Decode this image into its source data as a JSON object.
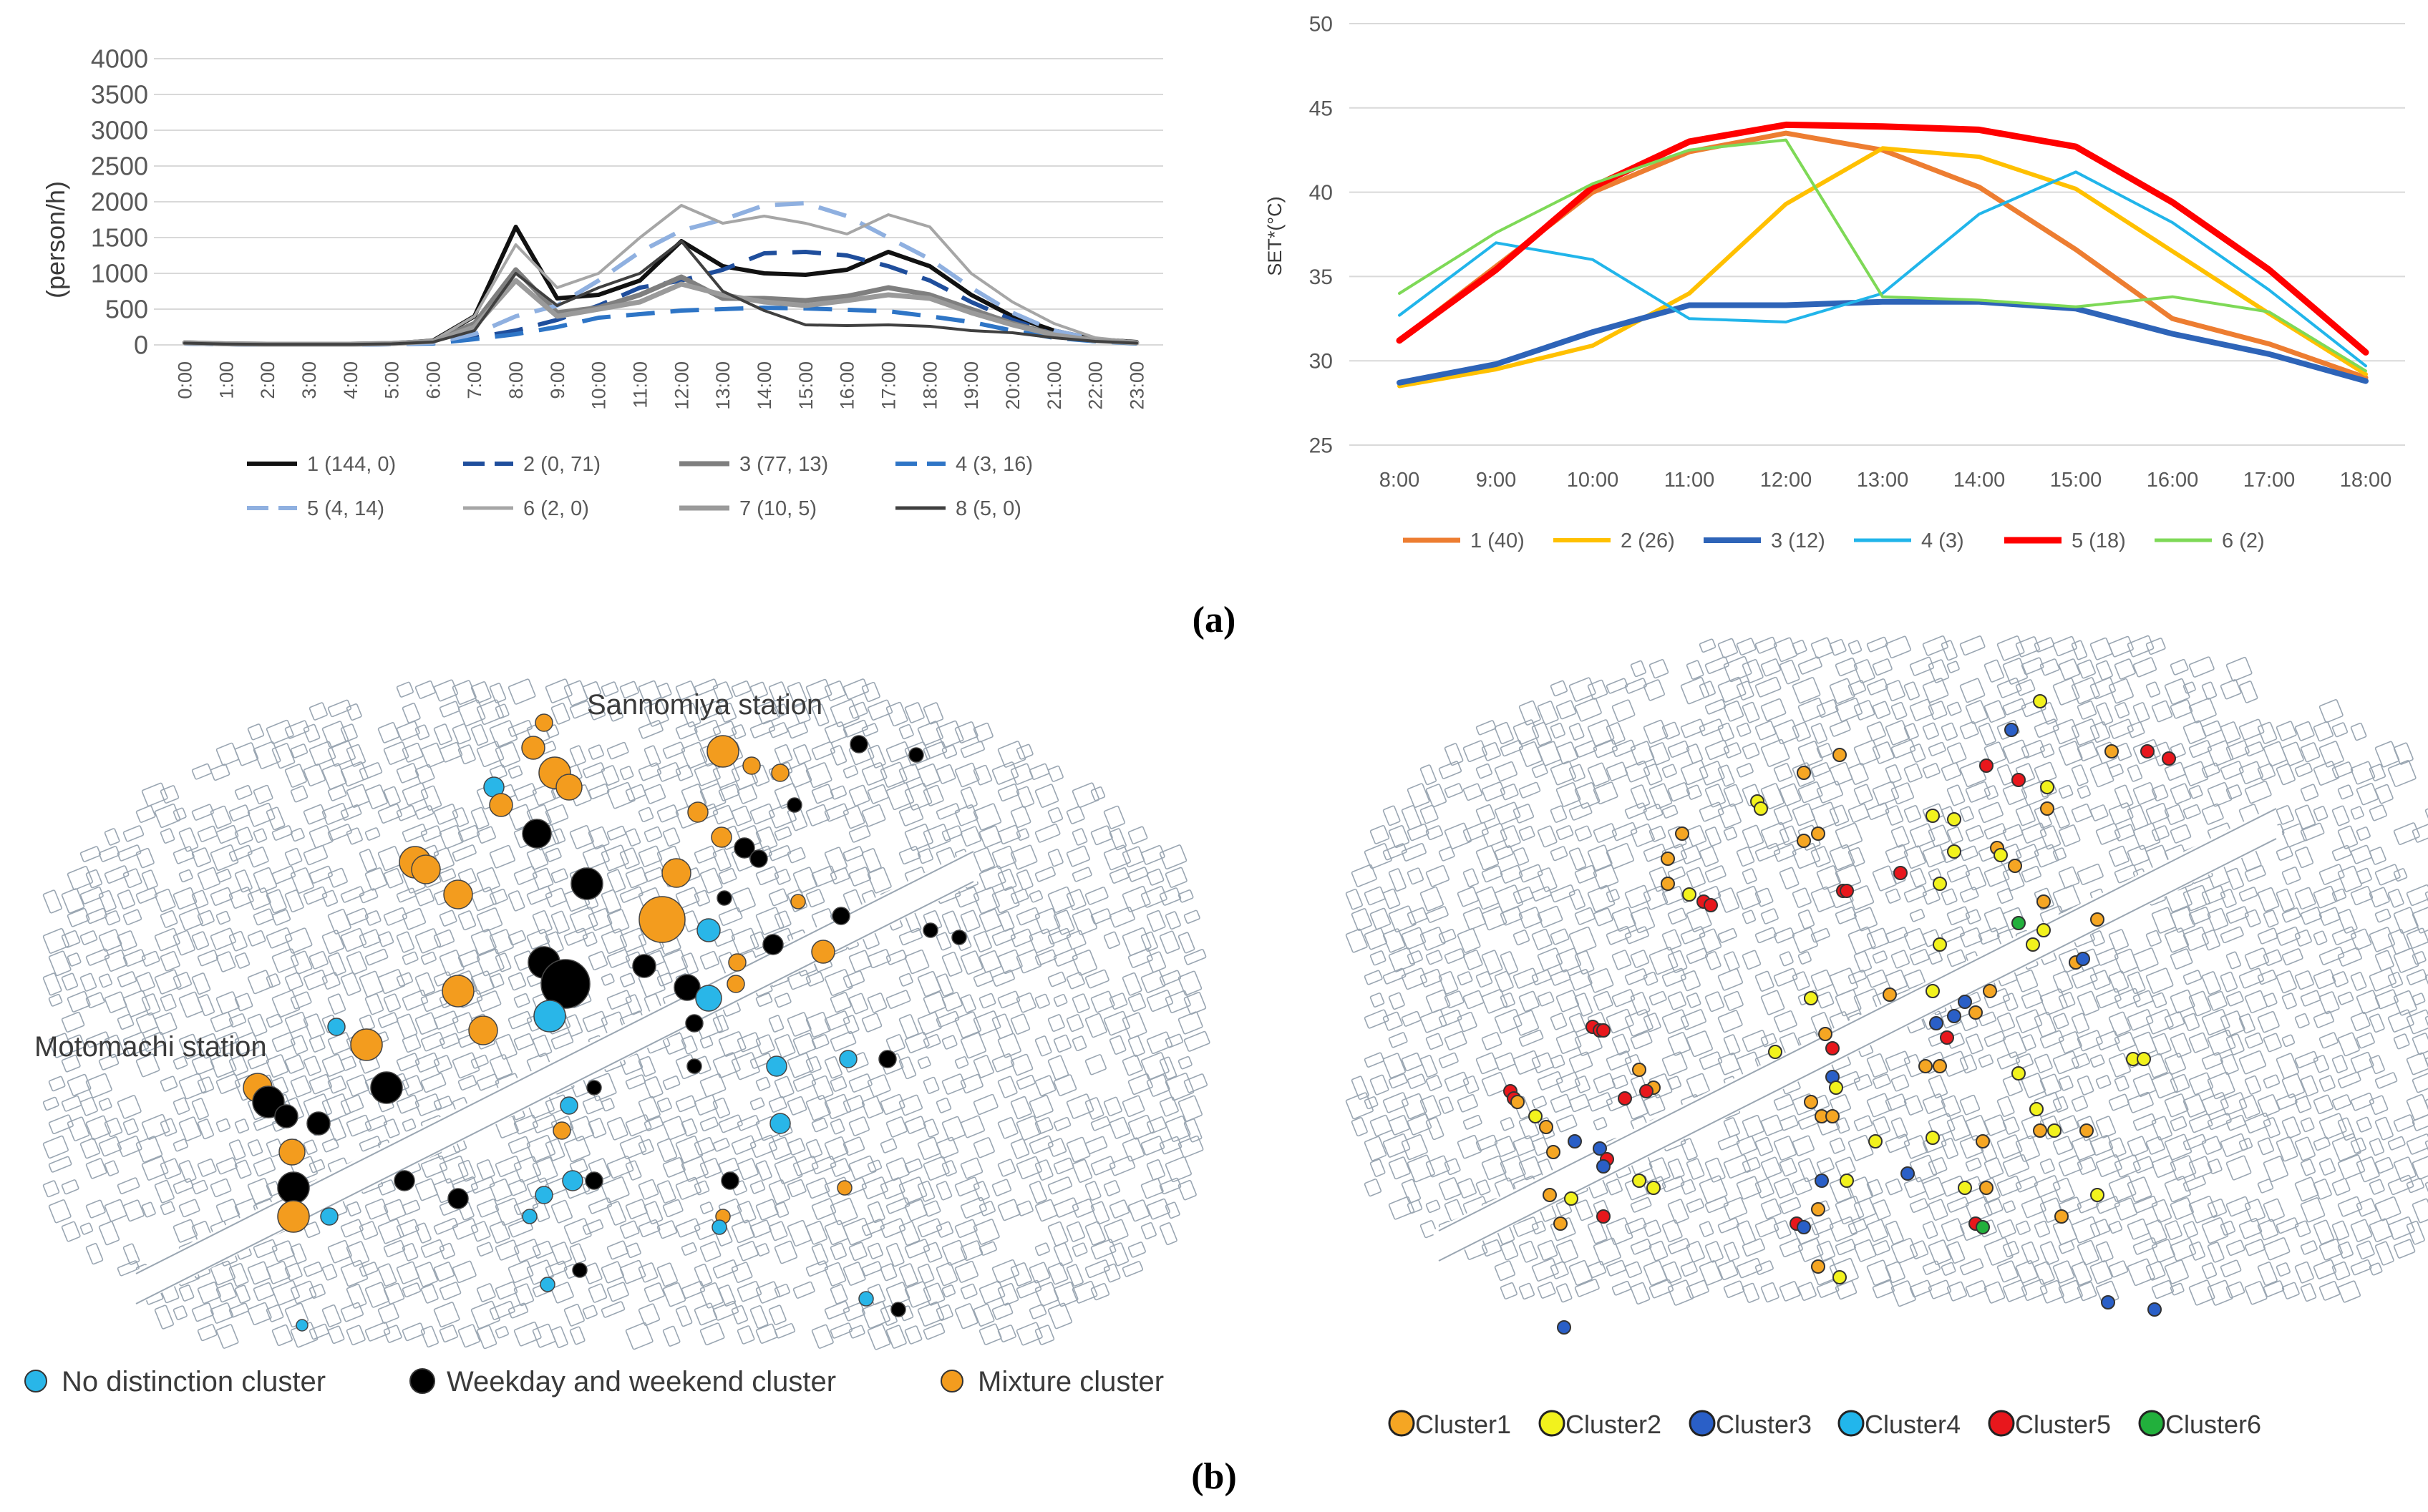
{
  "chart_data": [
    {
      "type": "line",
      "panel": "a-left",
      "title": "",
      "ylabel": "(person/h)",
      "xlabel": "",
      "ylim": [
        0,
        4000
      ],
      "yticks": [
        0,
        500,
        1000,
        1500,
        2000,
        2500,
        3000,
        3500,
        4000
      ],
      "categories": [
        "0:00",
        "1:00",
        "2:00",
        "3:00",
        "4:00",
        "5:00",
        "6:00",
        "7:00",
        "8:00",
        "9:00",
        "10:00",
        "11:00",
        "12:00",
        "13:00",
        "14:00",
        "15:00",
        "16:00",
        "17:00",
        "18:00",
        "19:00",
        "20:00",
        "21:00",
        "22:00",
        "23:00"
      ],
      "legend_position": "bottom",
      "series": [
        {
          "name": "1 (144, 0)",
          "color": "#111111",
          "dash": "solid",
          "width": 6,
          "values": [
            30,
            15,
            10,
            10,
            10,
            20,
            60,
            400,
            1650,
            650,
            700,
            900,
            1450,
            1100,
            1000,
            980,
            1050,
            1300,
            1100,
            700,
            400,
            200,
            80,
            40
          ]
        },
        {
          "name": "2 (0, 71)",
          "color": "#1f4e9c",
          "dash": "long",
          "width": 6,
          "values": [
            20,
            10,
            5,
            5,
            5,
            10,
            30,
            100,
            200,
            350,
            550,
            800,
            900,
            1050,
            1280,
            1300,
            1250,
            1100,
            900,
            600,
            350,
            150,
            60,
            30
          ]
        },
        {
          "name": "3 (77, 13)",
          "color": "#7f7f7f",
          "dash": "solid",
          "width": 7,
          "values": [
            30,
            15,
            10,
            10,
            10,
            20,
            50,
            300,
            1050,
            450,
            520,
            700,
            950,
            650,
            650,
            620,
            680,
            800,
            700,
            500,
            300,
            150,
            70,
            30
          ]
        },
        {
          "name": "4 (3, 16)",
          "color": "#2e75c6",
          "dash": "long",
          "width": 6,
          "values": [
            20,
            10,
            5,
            5,
            5,
            10,
            20,
            80,
            150,
            250,
            380,
            430,
            480,
            500,
            520,
            510,
            490,
            470,
            400,
            320,
            200,
            100,
            50,
            20
          ]
        },
        {
          "name": "5 (4, 14)",
          "color": "#8fb0e0",
          "dash": "long",
          "width": 6,
          "values": [
            20,
            10,
            5,
            5,
            5,
            10,
            30,
            150,
            400,
            550,
            900,
            1300,
            1600,
            1750,
            1950,
            1980,
            1800,
            1500,
            1200,
            800,
            450,
            200,
            80,
            30
          ]
        },
        {
          "name": "6 (2, 0)",
          "color": "#a6a6a6",
          "dash": "solid",
          "width": 4,
          "values": [
            30,
            15,
            10,
            10,
            10,
            20,
            60,
            400,
            1400,
            800,
            1000,
            1500,
            1950,
            1700,
            1800,
            1700,
            1550,
            1820,
            1650,
            1000,
            600,
            300,
            100,
            40
          ]
        },
        {
          "name": "7 (10, 5)",
          "color": "#9a9a9a",
          "dash": "solid",
          "width": 7,
          "values": [
            30,
            15,
            10,
            10,
            10,
            20,
            50,
            250,
            900,
            400,
            500,
            600,
            850,
            700,
            600,
            550,
            620,
            700,
            650,
            450,
            280,
            140,
            60,
            30
          ]
        },
        {
          "name": "8 (5, 0)",
          "color": "#404040",
          "dash": "solid",
          "width": 4,
          "values": [
            25,
            12,
            8,
            8,
            8,
            15,
            40,
            200,
            1000,
            550,
            800,
            1000,
            1450,
            750,
            480,
            280,
            270,
            280,
            260,
            200,
            170,
            100,
            50,
            25
          ]
        }
      ]
    },
    {
      "type": "line",
      "panel": "a-right",
      "title": "",
      "ylabel": "SET*(°C)",
      "xlabel": "",
      "ylim": [
        25,
        50
      ],
      "yticks": [
        25,
        30,
        35,
        40,
        45,
        50
      ],
      "categories": [
        "8:00",
        "9:00",
        "10:00",
        "11:00",
        "12:00",
        "13:00",
        "14:00",
        "15:00",
        "16:00",
        "17:00",
        "18:00"
      ],
      "legend_position": "bottom",
      "series": [
        {
          "name": "1 (40)",
          "color": "#ed7d31",
          "width": 7,
          "values": [
            31.2,
            35.6,
            40.0,
            42.4,
            43.5,
            42.5,
            40.3,
            36.6,
            32.5,
            31.0,
            29.0
          ]
        },
        {
          "name": "2 (26)",
          "color": "#ffc000",
          "width": 6,
          "values": [
            28.5,
            29.5,
            30.9,
            34.0,
            39.3,
            42.6,
            42.1,
            40.2,
            36.5,
            32.8,
            29.2
          ]
        },
        {
          "name": "3 (12)",
          "color": "#2e64b8",
          "width": 8,
          "values": [
            28.7,
            29.8,
            31.7,
            33.3,
            33.3,
            33.5,
            33.5,
            33.1,
            31.6,
            30.4,
            28.8
          ]
        },
        {
          "name": "4 (3)",
          "color": "#21b5ea",
          "width": 4,
          "values": [
            32.7,
            37.0,
            36.0,
            32.5,
            32.3,
            34.0,
            38.7,
            41.2,
            38.2,
            34.2,
            29.7
          ]
        },
        {
          "name": "5 (18)",
          "color": "#ff0000",
          "width": 9,
          "values": [
            31.2,
            35.4,
            40.3,
            43.0,
            44.0,
            43.9,
            43.7,
            42.7,
            39.4,
            35.4,
            30.5
          ]
        },
        {
          "name": "6 (2)",
          "color": "#7ed957",
          "width": 4,
          "values": [
            34.0,
            37.6,
            40.5,
            42.5,
            43.1,
            33.8,
            33.6,
            33.2,
            33.8,
            32.9,
            29.4
          ]
        }
      ]
    }
  ],
  "panel_labels": {
    "a": "(a)",
    "b": "(b)"
  },
  "maps": {
    "left": {
      "labels": {
        "sannomiya": "Sannomiya station",
        "motomachi": "Motomachi station"
      },
      "legend": [
        {
          "name": "No distinction cluster",
          "color": "#29b6e8"
        },
        {
          "name": "Weekday and weekend cluster",
          "color": "#000000"
        },
        {
          "name": "Mixture cluster",
          "color": "#f39c1e"
        }
      ]
    },
    "right": {
      "legend": [
        {
          "name": "Cluster1",
          "color": "#f5a623"
        },
        {
          "name": "Cluster2",
          "color": "#f2f21d"
        },
        {
          "name": "Cluster3",
          "color": "#2a5fc7"
        },
        {
          "name": "Cluster4",
          "color": "#22b6ec"
        },
        {
          "name": "Cluster5",
          "color": "#e8171c"
        },
        {
          "name": "Cluster6",
          "color": "#22b03c"
        }
      ]
    }
  }
}
